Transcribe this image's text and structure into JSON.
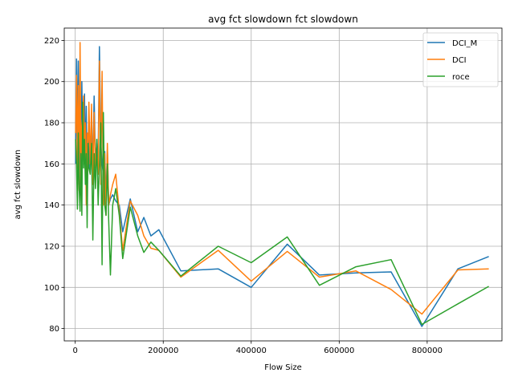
{
  "chart_data": {
    "type": "line",
    "title": "avg fct slowdown fct slowdown",
    "xlabel": "Flow Size",
    "ylabel": "avg fct slowdown",
    "xlim": [
      -25000,
      970000
    ],
    "ylim": [
      74,
      226
    ],
    "xticks": [
      0,
      200000,
      400000,
      600000,
      800000
    ],
    "yticks": [
      80,
      100,
      120,
      140,
      160,
      180,
      200,
      220
    ],
    "grid": true,
    "legend_position": "top-right",
    "series": [
      {
        "name": "DCI_M",
        "color": "#1f77b4",
        "x": [
          1000,
          3000,
          5000,
          7000,
          9000,
          11000,
          13000,
          15000,
          17000,
          19000,
          21000,
          23000,
          25000,
          27000,
          29000,
          31000,
          34000,
          37000,
          40000,
          43000,
          46000,
          49000,
          52000,
          55000,
          58000,
          61000,
          64000,
          67000,
          70000,
          73000,
          76000,
          80000,
          85000,
          92000,
          100000,
          108000,
          125000,
          142000,
          156000,
          172000,
          190000,
          240000,
          325000,
          400000,
          482000,
          555000,
          638000,
          718000,
          788000,
          870000,
          940000
        ],
        "y": [
          160,
          211,
          165,
          210,
          150,
          190,
          145,
          200,
          165,
          170,
          194,
          158,
          188,
          145,
          175,
          168,
          157,
          182,
          155,
          193,
          160,
          170,
          163,
          217,
          170,
          160,
          155,
          166,
          142,
          167,
          140,
          143,
          145,
          142,
          140,
          127,
          143,
          127,
          134,
          125,
          128,
          108,
          109,
          100,
          121,
          106,
          107,
          107.5,
          81,
          109,
          115
        ]
      },
      {
        "name": "DCI",
        "color": "#ff7f0e",
        "x": [
          1000,
          3000,
          5000,
          7000,
          9000,
          11000,
          13000,
          15000,
          17000,
          19000,
          21000,
          23000,
          25000,
          27000,
          29000,
          31000,
          34000,
          37000,
          40000,
          43000,
          46000,
          49000,
          52000,
          55000,
          58000,
          61000,
          64000,
          67000,
          70000,
          73000,
          76000,
          80000,
          85000,
          92000,
          100000,
          108000,
          125000,
          142000,
          156000,
          172000,
          190000,
          240000,
          325000,
          400000,
          482000,
          555000,
          638000,
          718000,
          788000,
          870000,
          940000
        ],
        "y": [
          175,
          203,
          158,
          198,
          147,
          219,
          155,
          178,
          183,
          193,
          160,
          180,
          140,
          175,
          160,
          190,
          160,
          189,
          150,
          185,
          158,
          165,
          155,
          210,
          150,
          205,
          140,
          165,
          135,
          170,
          140,
          145,
          150,
          155,
          137,
          118,
          142,
          135,
          125,
          119,
          118,
          105,
          118,
          103,
          117.5,
          105,
          108,
          99,
          87,
          108.5,
          109
        ]
      },
      {
        "name": "roce",
        "color": "#2ca02c",
        "x": [
          1000,
          3000,
          5000,
          7000,
          9000,
          11000,
          13000,
          15000,
          17000,
          19000,
          21000,
          23000,
          25000,
          27000,
          29000,
          31000,
          34000,
          37000,
          40000,
          43000,
          46000,
          49000,
          52000,
          55000,
          58000,
          61000,
          64000,
          67000,
          70000,
          73000,
          76000,
          80000,
          85000,
          92000,
          100000,
          108000,
          125000,
          142000,
          156000,
          172000,
          190000,
          240000,
          325000,
          400000,
          482000,
          555000,
          638000,
          718000,
          788000,
          870000,
          940000
        ],
        "y": [
          172,
          160,
          138,
          175,
          148,
          137,
          165,
          135,
          190,
          158,
          172,
          150,
          165,
          129,
          170,
          158,
          155,
          170,
          123,
          165,
          148,
          172,
          140,
          160,
          180,
          111,
          185,
          140,
          135,
          160,
          133,
          106,
          140,
          148,
          135,
          114,
          139,
          125,
          117,
          122,
          118,
          105.5,
          120,
          112,
          124.5,
          101,
          110,
          113.5,
          82,
          92,
          100.5
        ]
      }
    ]
  }
}
